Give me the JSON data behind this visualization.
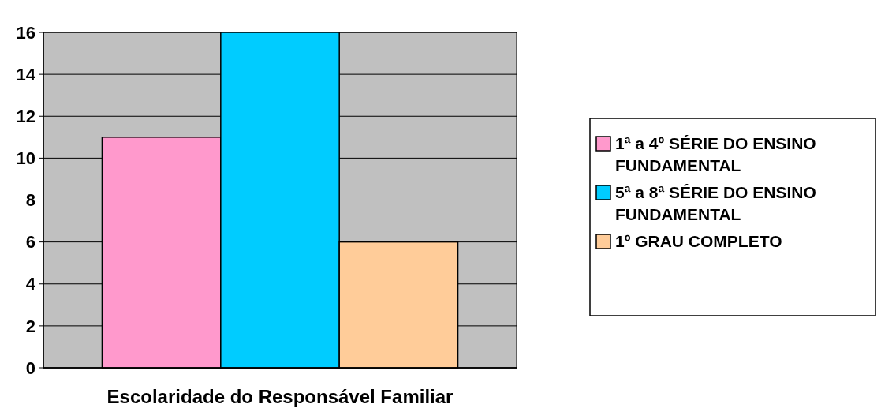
{
  "chart_data": {
    "type": "bar",
    "xlabel": "Escolaridade do Responsável Familiar",
    "categories": [
      null
    ],
    "series": [
      {
        "name": "1ª a 4º SÉRIE DO ENSINO FUNDAMENTAL",
        "color": "#ff99cc",
        "values": [
          11
        ]
      },
      {
        "name": "5ª a 8ª SÉRIE DO ENSINO FUNDAMENTAL",
        "color": "#00ccff",
        "values": [
          16
        ]
      },
      {
        "name": "1º GRAU COMPLETO",
        "color": "#ffcc99",
        "values": [
          6
        ]
      }
    ],
    "ylim": [
      0,
      16
    ],
    "yticks": [
      0,
      2,
      4,
      6,
      8,
      10,
      12,
      14,
      16
    ],
    "grid": "y",
    "legend": "right"
  }
}
